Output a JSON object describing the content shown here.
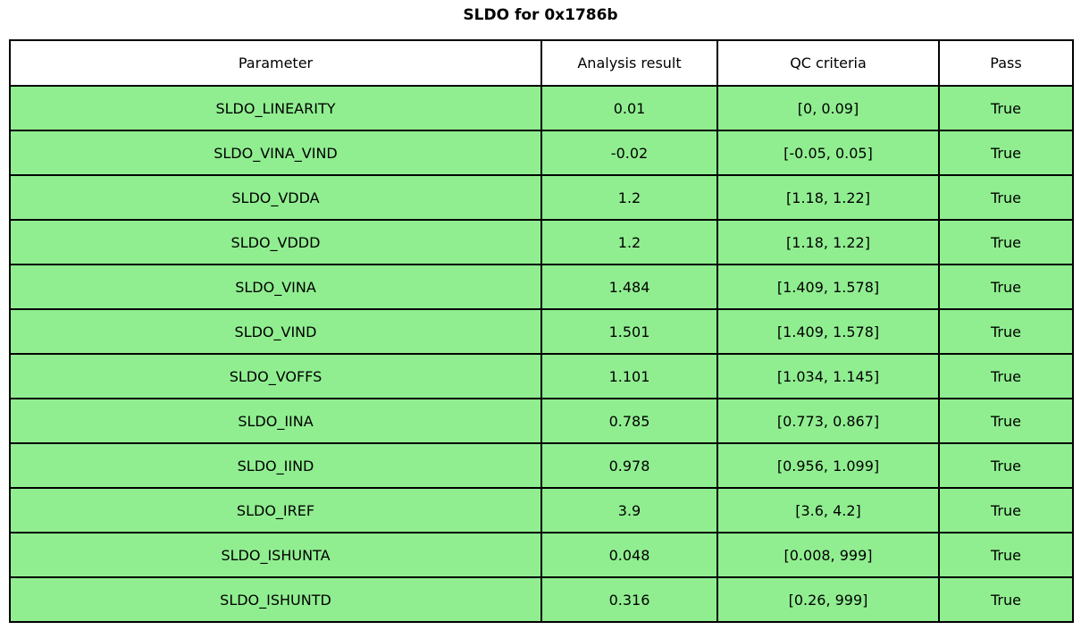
{
  "chart_data": {
    "type": "table",
    "title": "SLDO for 0x1786b",
    "columns": [
      "Parameter",
      "Analysis result",
      "QC criteria",
      "Pass"
    ],
    "rows": [
      [
        "SLDO_LINEARITY",
        "0.01",
        "[0, 0.09]",
        "True"
      ],
      [
        "SLDO_VINA_VIND",
        "-0.02",
        "[-0.05, 0.05]",
        "True"
      ],
      [
        "SLDO_VDDA",
        "1.2",
        "[1.18, 1.22]",
        "True"
      ],
      [
        "SLDO_VDDD",
        "1.2",
        "[1.18, 1.22]",
        "True"
      ],
      [
        "SLDO_VINA",
        "1.484",
        "[1.409, 1.578]",
        "True"
      ],
      [
        "SLDO_VIND",
        "1.501",
        "[1.409, 1.578]",
        "True"
      ],
      [
        "SLDO_VOFFS",
        "1.101",
        "[1.034, 1.145]",
        "True"
      ],
      [
        "SLDO_IINA",
        "0.785",
        "[0.773, 0.867]",
        "True"
      ],
      [
        "SLDO_IIND",
        "0.978",
        "[0.956, 1.099]",
        "True"
      ],
      [
        "SLDO_IREF",
        "3.9",
        "[3.6, 4.2]",
        "True"
      ],
      [
        "SLDO_ISHUNTA",
        "0.048",
        "[0.008, 999]",
        "True"
      ],
      [
        "SLDO_ISHUNTD",
        "0.316",
        "[0.26, 999]",
        "True"
      ]
    ],
    "layout": {
      "legend": "none",
      "grid": "table-borders",
      "pass_row_color_meaning": "all rows passed QC"
    }
  },
  "colors": {
    "row_bg": "#90EE90",
    "header_bg": "#FFFFFF",
    "border": "#000000",
    "page_bg": "#FFFFFF",
    "text": "#000000"
  }
}
